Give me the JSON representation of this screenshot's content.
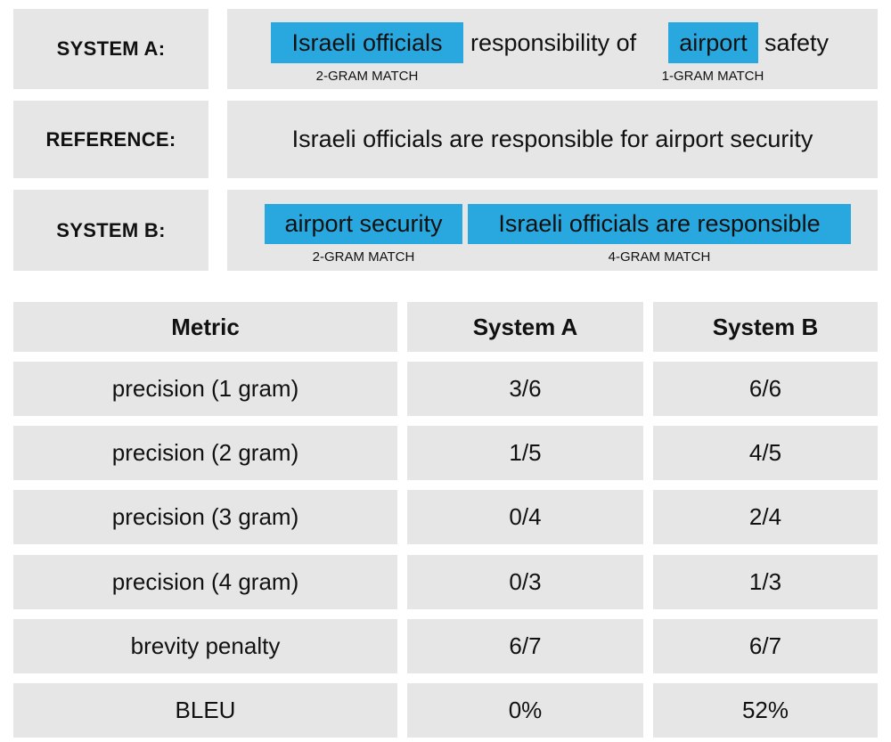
{
  "rows": {
    "system_a": {
      "label": "SYSTEM A:",
      "seg1": "Israeli officials",
      "seg2": "responsibility of",
      "seg3": "airport",
      "seg4": "safety",
      "tag1": "2-GRAM MATCH",
      "tag2": "1-GRAM MATCH"
    },
    "reference": {
      "label": "REFERENCE:",
      "sentence": "Israeli officials are responsible for airport security"
    },
    "system_b": {
      "label": "SYSTEM B:",
      "seg1": "airport security",
      "seg2": "Israeli officials are responsible",
      "tag1": "2-GRAM MATCH",
      "tag2": "4-GRAM MATCH"
    }
  },
  "colors": {
    "highlight": "#29a8e0",
    "cell": "#e6e6e6"
  },
  "table": {
    "headers": [
      "Metric",
      "System A",
      "System B"
    ],
    "rows": [
      [
        "precision (1 gram)",
        "3/6",
        "6/6"
      ],
      [
        "precision (2 gram)",
        "1/5",
        "4/5"
      ],
      [
        "precision (3 gram)",
        "0/4",
        "2/4"
      ],
      [
        "precision (4 gram)",
        "0/3",
        "1/3"
      ],
      [
        "brevity penalty",
        "6/7",
        "6/7"
      ],
      [
        "BLEU",
        "0%",
        "52%"
      ]
    ]
  }
}
